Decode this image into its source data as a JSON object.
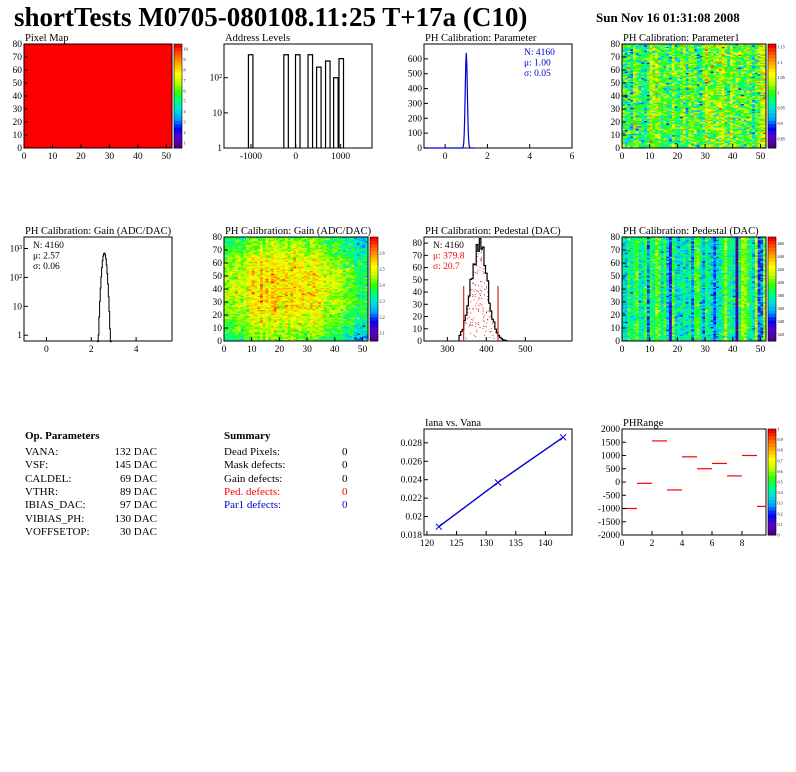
{
  "header": {
    "title": "shortTests M0705-080108.11:25 T+17a (C10)",
    "date": "Sun Nov 16 01:31:08 2008"
  },
  "colors": {
    "red": "#ff0000",
    "blue": "#0000cc",
    "hist_red": "#cc0000"
  },
  "palette_stops": [
    "#4b0082",
    "#5a00c8",
    "#0000ff",
    "#00a0ff",
    "#00e0e0",
    "#00ff80",
    "#30ff00",
    "#c0ff00",
    "#ffff00",
    "#ffb000",
    "#ff6000",
    "#ff0000"
  ],
  "op_params": {
    "heading": "Op. Parameters",
    "rows": [
      {
        "name": "VANA:",
        "value": "132 DAC"
      },
      {
        "name": "VSF:",
        "value": "145 DAC"
      },
      {
        "name": "CALDEL:",
        "value": "69 DAC"
      },
      {
        "name": "VTHR:",
        "value": "89 DAC"
      },
      {
        "name": "IBIAS_DAC:",
        "value": "97 DAC"
      },
      {
        "name": "VIBIAS_PH:",
        "value": "130 DAC"
      },
      {
        "name": "VOFFSETOP:",
        "value": "30 DAC"
      }
    ]
  },
  "summary": {
    "heading": "Summary",
    "rows": [
      {
        "name": "Dead Pixels:",
        "value": "0",
        "color": "#000000"
      },
      {
        "name": "Mask defects:",
        "value": "0",
        "color": "#000000"
      },
      {
        "name": "Gain defects:",
        "value": "0",
        "color": "#000000"
      },
      {
        "name": "Ped. defects:",
        "value": "0",
        "color": "#ff0000"
      },
      {
        "name": "Par1 defects:",
        "value": "0",
        "color": "#0000cc"
      }
    ]
  },
  "chart_data": [
    {
      "id": "pixel_map",
      "type": "heatmap",
      "title": "Pixel Map",
      "xticks": [
        "0",
        "10",
        "20",
        "30",
        "40",
        "50"
      ],
      "yticks": [
        "0",
        "10",
        "20",
        "30",
        "40",
        "50",
        "60",
        "70",
        "80"
      ],
      "xlim": [
        0,
        52
      ],
      "ylim": [
        0,
        80
      ],
      "uniform_value": 10,
      "zticks": [
        "1",
        "2",
        "3",
        "4",
        "5",
        "6",
        "7",
        "8",
        "9",
        "10"
      ]
    },
    {
      "id": "address_levels",
      "type": "bar",
      "title": "Address Levels",
      "xticks": [
        "-1000",
        "0",
        "1000"
      ],
      "xlim": [
        -1600,
        1700
      ],
      "yscale": "log",
      "yticks": [
        "1",
        "10",
        "10²"
      ],
      "peaks": [
        {
          "x": -1000,
          "height": 450
        },
        {
          "x": -210,
          "height": 450
        },
        {
          "x": 50,
          "height": 450
        },
        {
          "x": 330,
          "height": 450
        },
        {
          "x": 520,
          "height": 200
        },
        {
          "x": 720,
          "height": 300
        },
        {
          "x": 900,
          "height": 100
        },
        {
          "x": 1020,
          "height": 350
        }
      ]
    },
    {
      "id": "ph_param",
      "type": "bar",
      "title": "PH Calibration: Parameter",
      "xticks": [
        "0",
        "2",
        "4",
        "6"
      ],
      "xlim": [
        -1,
        6
      ],
      "yticks": [
        "0",
        "100",
        "200",
        "300",
        "400",
        "500",
        "600"
      ],
      "ylim": [
        0,
        700
      ],
      "stats": {
        "n": "N: 4160",
        "mu": "μ: 1.00",
        "sigma": "σ: 0.05"
      },
      "peak": {
        "mean": 1.0,
        "sigma": 0.05,
        "height": 640
      }
    },
    {
      "id": "ph_param1",
      "type": "heatmap",
      "title": "PH Calibration: Parameter1",
      "xticks": [
        "0",
        "10",
        "20",
        "30",
        "40",
        "50"
      ],
      "yticks": [
        "0",
        "10",
        "20",
        "30",
        "40",
        "50",
        "60",
        "70",
        "80"
      ],
      "xlim": [
        0,
        52
      ],
      "ylim": [
        0,
        80
      ],
      "zticks": [
        "0.85",
        "0.9",
        "0.95",
        "1",
        "1.05",
        "1.1",
        "1.15"
      ],
      "zlim": [
        0.82,
        1.16
      ]
    },
    {
      "id": "gain_hist",
      "type": "bar",
      "title": "PH Calibration: Gain (ADC/DAC)",
      "xticks": [
        "0",
        "2",
        "4"
      ],
      "xlim": [
        -1,
        5.6
      ],
      "yscale": "log",
      "yticks": [
        "1",
        "10",
        "10²",
        "10³"
      ],
      "stats": {
        "n": "N: 4160",
        "mu": "μ: 2.57",
        "sigma": "σ: 0.06"
      },
      "peak": {
        "mean": 2.57,
        "sigma": 0.06,
        "height": 700
      }
    },
    {
      "id": "gain_map",
      "type": "heatmap",
      "title": "PH Calibration: Gain (ADC/DAC)",
      "xticks": [
        "0",
        "10",
        "20",
        "30",
        "40",
        "50"
      ],
      "yticks": [
        "0",
        "10",
        "20",
        "30",
        "40",
        "50",
        "60",
        "70",
        "80"
      ],
      "xlim": [
        0,
        52
      ],
      "ylim": [
        0,
        80
      ],
      "zticks": [
        "2.1",
        "2.2",
        "2.3",
        "2.4",
        "2.5",
        "2.6"
      ],
      "zlim": [
        2.05,
        2.7
      ]
    },
    {
      "id": "pedestal_hist",
      "type": "bar",
      "title": "PH Calibration: Pedestal (DAC)",
      "xticks": [
        "300",
        "400",
        "500"
      ],
      "xlim": [
        240,
        620
      ],
      "yticks": [
        "0",
        "10",
        "20",
        "30",
        "40",
        "50",
        "60",
        "70",
        "80"
      ],
      "ylim": [
        0,
        85
      ],
      "stats": {
        "n": "N: 4160",
        "mu": "μ: 379.8",
        "sigma": "σ: 20.7"
      },
      "peak": {
        "mean": 379.8,
        "sigma": 20.7,
        "height": 80
      },
      "cut_lines": [
        342,
        430
      ]
    },
    {
      "id": "pedestal_map",
      "type": "heatmap",
      "title": "PH Calibration: Pedestal (DAC)",
      "xticks": [
        "0",
        "10",
        "20",
        "30",
        "40",
        "50"
      ],
      "yticks": [
        "0",
        "10",
        "20",
        "30",
        "40",
        "50",
        "60",
        "70",
        "80"
      ],
      "xlim": [
        0,
        52
      ],
      "ylim": [
        0,
        80
      ],
      "zticks": [
        "320",
        "340",
        "360",
        "380",
        "400",
        "420",
        "440",
        "460"
      ],
      "zlim": [
        310,
        470
      ]
    },
    {
      "id": "iana_vana",
      "type": "line",
      "title": "Iana vs. Vana",
      "xticks": [
        "120",
        "125",
        "130",
        "135",
        "140"
      ],
      "xlim": [
        119.5,
        144.5
      ],
      "yticks": [
        "0.018",
        "0.02",
        "0.022",
        "0.024",
        "0.026",
        "0.028"
      ],
      "ylim": [
        0.018,
        0.0295
      ],
      "x": [
        122,
        132,
        143
      ],
      "y": [
        0.0189,
        0.0237,
        0.0286
      ]
    },
    {
      "id": "phrange",
      "type": "scatter",
      "title": "PHRange",
      "xticks": [
        "0",
        "2",
        "4",
        "6",
        "8"
      ],
      "xlim": [
        0,
        9.6
      ],
      "yticks": [
        "-2000",
        "-1500",
        "-1000",
        "-500",
        "0",
        "500",
        "1000",
        "1500",
        "2000"
      ],
      "ylim": [
        -2000,
        2000
      ],
      "x": [
        0.5,
        1.5,
        2.5,
        3.5,
        4.5,
        5.5,
        6.5,
        7.5,
        8.5,
        9.5
      ],
      "y": [
        -1000,
        -50,
        1550,
        -300,
        950,
        500,
        700,
        230,
        1000,
        -920
      ],
      "zticks": [
        "0",
        "0.1",
        "0.2",
        "0.3",
        "0.4",
        "0.5",
        "0.6",
        "0.7",
        "0.8",
        "0.9",
        "1"
      ]
    }
  ]
}
